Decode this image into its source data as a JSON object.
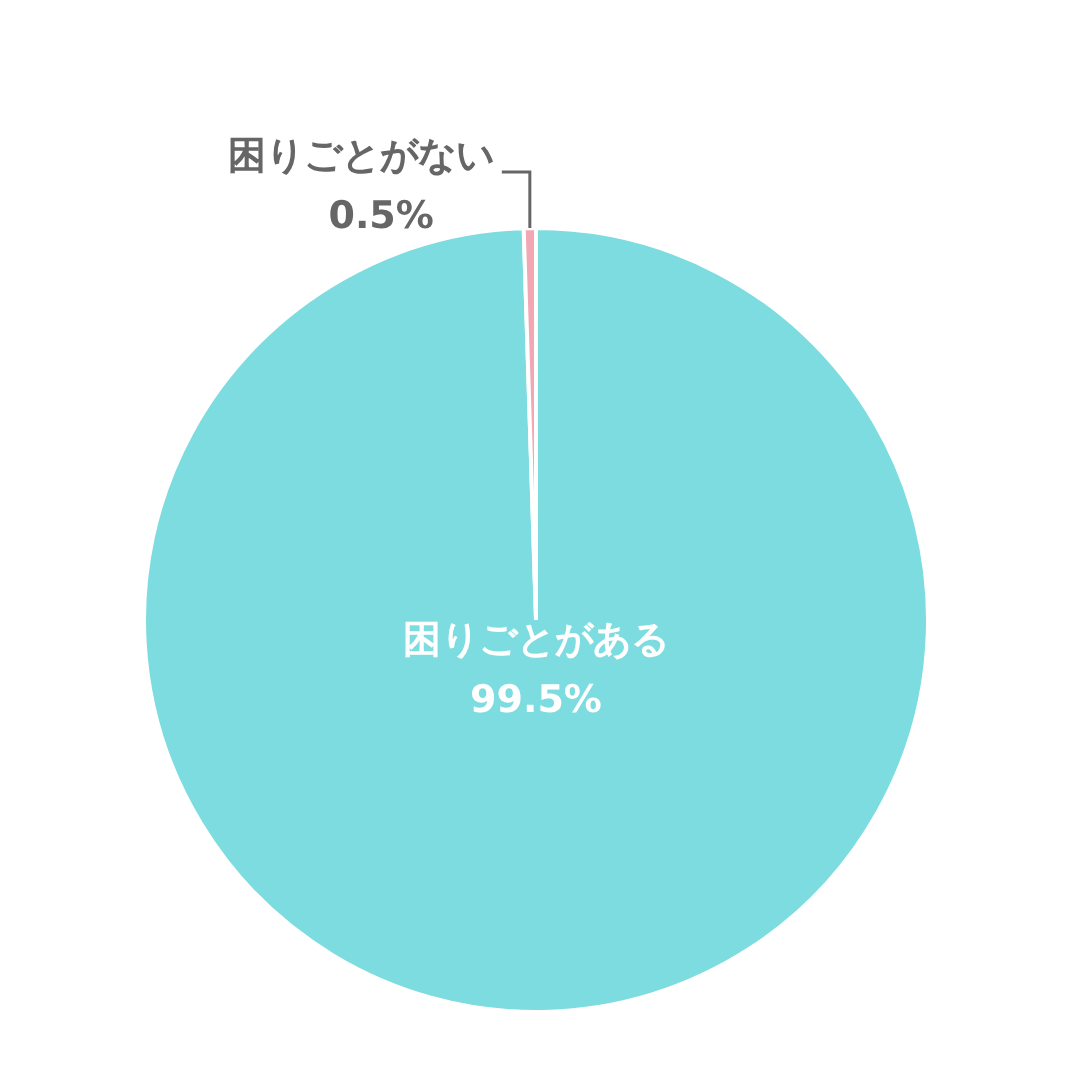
{
  "chart_data": {
    "type": "pie",
    "categories": [
      "困りごとがある",
      "困りごとがない"
    ],
    "values": [
      99.5,
      0.5
    ],
    "colors": [
      "#7ddcdf",
      "#f2a7b3"
    ],
    "value_labels": [
      "99.5%",
      "0.5%"
    ]
  }
}
